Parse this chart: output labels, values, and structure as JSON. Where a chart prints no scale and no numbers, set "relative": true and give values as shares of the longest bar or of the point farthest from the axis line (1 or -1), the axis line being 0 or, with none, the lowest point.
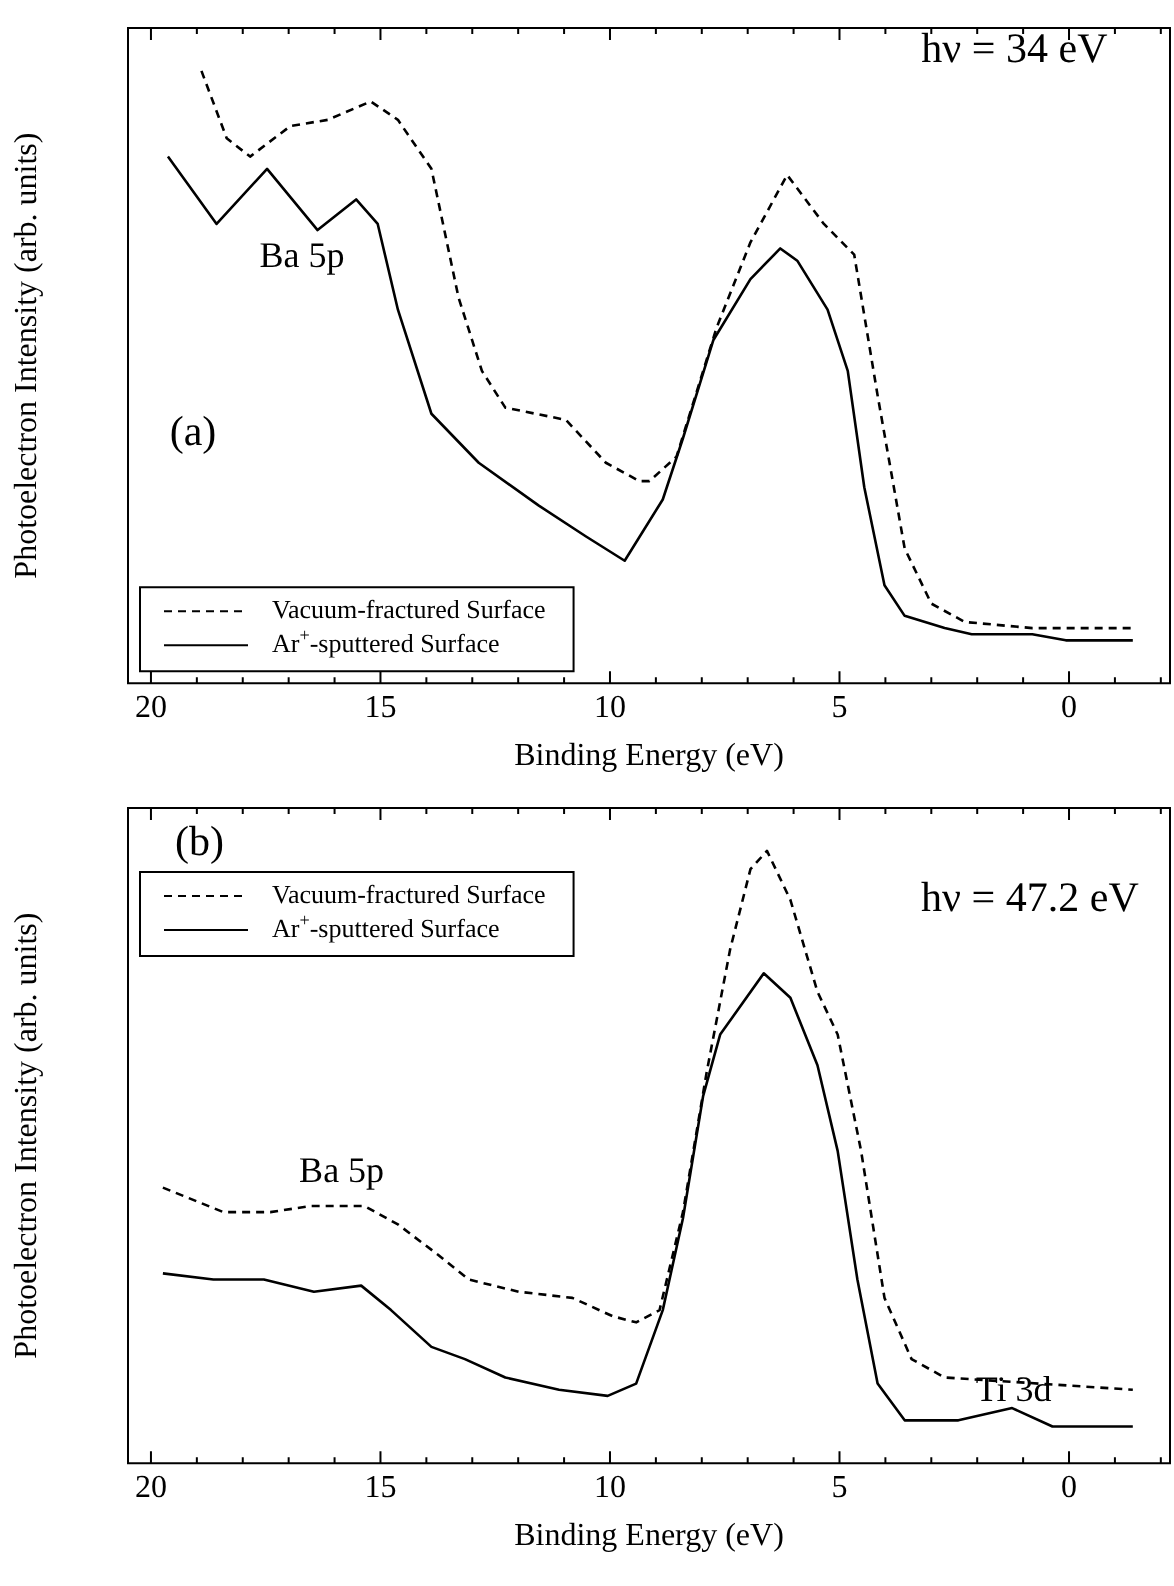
{
  "chart_data": [
    {
      "type": "line",
      "relative": true,
      "xlabel": "Binding Energy (eV)",
      "ylabel": "Photoelectron Intensity (arb. units)",
      "legend": "bottom left",
      "xlim": [
        20.5,
        -2.2
      ],
      "xticks": [
        20,
        {
          "value": 19,
          "label": null
        },
        {
          "value": 18,
          "label": null
        },
        {
          "value": 17,
          "label": null
        },
        {
          "value": 16,
          "label": null
        },
        15,
        {
          "value": 14,
          "label": null
        },
        {
          "value": 13,
          "label": null
        },
        {
          "value": 12,
          "label": null
        },
        {
          "value": 11,
          "label": null
        },
        10,
        {
          "value": 9,
          "label": null
        },
        {
          "value": 8,
          "label": null
        },
        {
          "value": 7,
          "label": null
        },
        {
          "value": 6,
          "label": null
        },
        5,
        {
          "value": 4,
          "label": null
        },
        {
          "value": 3,
          "label": null
        },
        {
          "value": 2,
          "label": null
        },
        {
          "value": 1,
          "label": null
        },
        0,
        {
          "value": -1,
          "label": null
        },
        {
          "value": -2,
          "label": null
        }
      ],
      "annotations": [
        "hν = 34 eV",
        "(a)",
        "Ba 5p"
      ],
      "series": [
        {
          "name": "Vacuum-fractured Surface",
          "color": "#000000",
          "line_style": "dashed",
          "x": [
            18.9,
            18.35,
            17.84,
            16.96,
            16.15,
            15.21,
            14.62,
            13.89,
            13.3,
            12.79,
            12.28,
            10.96,
            10.09,
            9.36,
            9.14,
            8.55,
            7.68,
            6.94,
            6.14,
            5.34,
            4.68,
            4.17,
            3.58,
            3.0,
            2.27,
            0.8,
            -1.39
          ],
          "values": [
            1.0,
            0.89,
            0.86,
            0.91,
            0.92,
            0.95,
            0.92,
            0.84,
            0.63,
            0.51,
            0.45,
            0.43,
            0.36,
            0.33,
            0.33,
            0.37,
            0.58,
            0.72,
            0.83,
            0.75,
            0.7,
            0.47,
            0.22,
            0.13,
            0.1,
            0.09,
            0.09
          ]
        },
        {
          "name": "Ar$^{+}$-sputtered Surface",
          "color": "#000000",
          "line_style": "solid",
          "x": [
            19.63,
            18.57,
            17.47,
            16.37,
            15.53,
            15.06,
            14.62,
            13.89,
            12.86,
            11.55,
            10.53,
            9.68,
            8.85,
            8.41,
            7.75,
            6.94,
            6.29,
            5.92,
            5.26,
            4.82,
            4.46,
            4.02,
            3.58,
            2.71,
            2.12,
            0.8,
            0.07,
            -1.39
          ],
          "values": [
            0.86,
            0.75,
            0.84,
            0.74,
            0.79,
            0.75,
            0.61,
            0.44,
            0.36,
            0.29,
            0.24,
            0.2,
            0.3,
            0.4,
            0.56,
            0.66,
            0.71,
            0.69,
            0.61,
            0.51,
            0.32,
            0.16,
            0.11,
            0.09,
            0.08,
            0.08,
            0.07,
            0.07
          ]
        }
      ]
    },
    {
      "type": "line",
      "relative": true,
      "xlabel": "Binding Energy (eV)",
      "ylabel": "Photoelectron Intensity (arb. units)",
      "legend": "top left",
      "xlim": [
        20.5,
        -2.2
      ],
      "xticks": [
        20,
        {
          "value": 19,
          "label": null
        },
        {
          "value": 18,
          "label": null
        },
        {
          "value": 17,
          "label": null
        },
        {
          "value": 16,
          "label": null
        },
        15,
        {
          "value": 14,
          "label": null
        },
        {
          "value": 13,
          "label": null
        },
        {
          "value": 12,
          "label": null
        },
        {
          "value": 11,
          "label": null
        },
        10,
        {
          "value": 9,
          "label": null
        },
        {
          "value": 8,
          "label": null
        },
        {
          "value": 7,
          "label": null
        },
        {
          "value": 6,
          "label": null
        },
        5,
        {
          "value": 4,
          "label": null
        },
        {
          "value": 3,
          "label": null
        },
        {
          "value": 2,
          "label": null
        },
        {
          "value": 1,
          "label": null
        },
        0,
        {
          "value": -1,
          "label": null
        },
        {
          "value": -2,
          "label": null
        }
      ],
      "annotations": [
        "hν = 47.2 eV",
        "(b)",
        "Ba 5p",
        "Ti 3d"
      ],
      "series": [
        {
          "name": "Vacuum-fractured Surface",
          "color": "#000000",
          "line_style": "dashed",
          "x": [
            19.74,
            18.42,
            17.4,
            16.52,
            15.35,
            14.62,
            13.74,
            13.08,
            11.99,
            10.82,
            9.94,
            9.43,
            8.92,
            8.41,
            7.89,
            7.38,
            6.94,
            6.58,
            6.07,
            5.48,
            5.04,
            4.53,
            4.02,
            3.43,
            2.71,
            -1.39
          ],
          "values": [
            0.45,
            0.41,
            0.41,
            0.42,
            0.42,
            0.39,
            0.34,
            0.3,
            0.28,
            0.27,
            0.24,
            0.23,
            0.25,
            0.41,
            0.64,
            0.84,
            0.97,
            1.0,
            0.92,
            0.77,
            0.7,
            0.51,
            0.27,
            0.17,
            0.14,
            0.12
          ]
        },
        {
          "name": "Ar$^{+}$-sputtered Surface",
          "color": "#000000",
          "line_style": "solid",
          "x": [
            19.74,
            18.64,
            17.54,
            16.45,
            15.42,
            14.77,
            13.89,
            13.16,
            12.28,
            11.11,
            10.05,
            9.43,
            8.85,
            8.41,
            7.97,
            7.6,
            6.65,
            6.07,
            5.48,
            5.04,
            4.61,
            4.17,
            3.58,
            2.41,
            1.24,
            0.36,
            -1.39
          ],
          "values": [
            0.31,
            0.3,
            0.3,
            0.28,
            0.29,
            0.25,
            0.19,
            0.17,
            0.14,
            0.12,
            0.11,
            0.13,
            0.25,
            0.4,
            0.6,
            0.7,
            0.8,
            0.76,
            0.65,
            0.51,
            0.3,
            0.13,
            0.07,
            0.07,
            0.09,
            0.06,
            0.06
          ]
        }
      ]
    }
  ]
}
